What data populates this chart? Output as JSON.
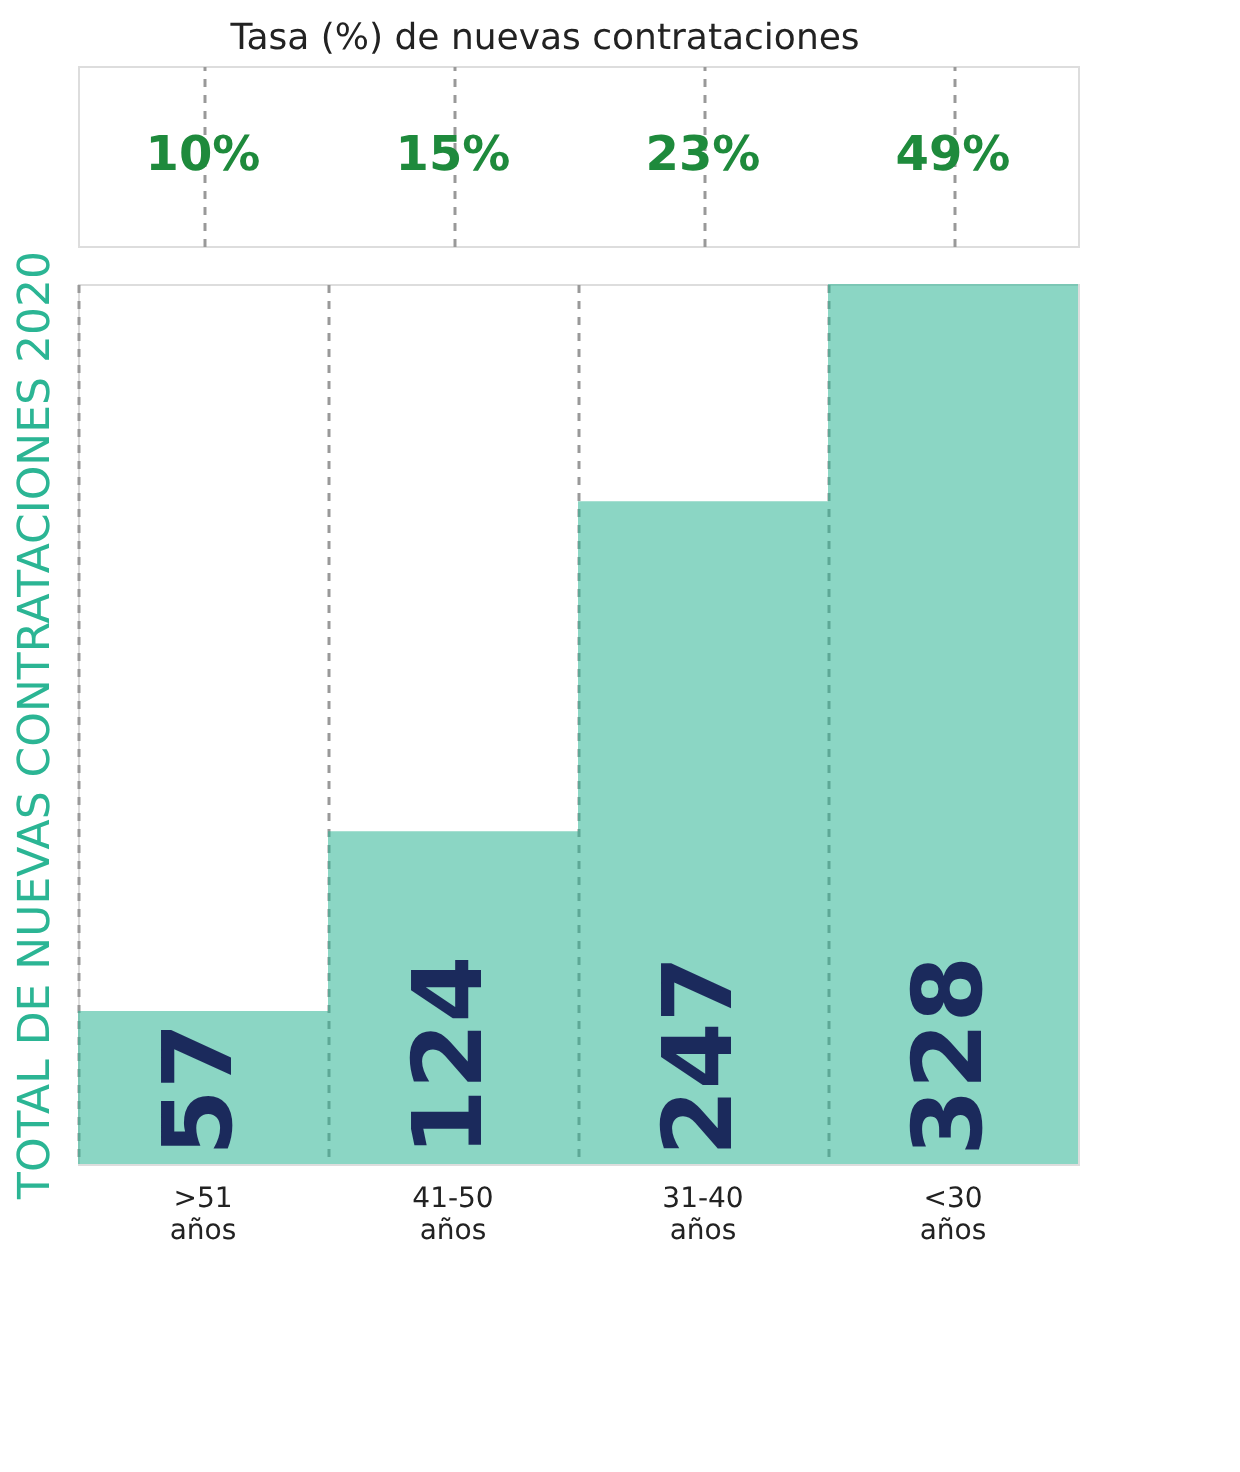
{
  "chart_data": {
    "type": "bar",
    "title": "Tasa (%) de nuevas contrataciones",
    "ylabel": "TOTAL DE NUEVAS CONTRATACIONES 2020",
    "categories": [
      ">51 años",
      "41-50 años",
      "31-40 años",
      "<30 años"
    ],
    "values": [
      57,
      124,
      247,
      328
    ],
    "color": "#2bb594",
    "data_labels": true,
    "grid": "x",
    "line_style": "dashed",
    "tick_labels": "x",
    "annotations": [
      "10%",
      "15%",
      "23%",
      "49%"
    ]
  }
}
